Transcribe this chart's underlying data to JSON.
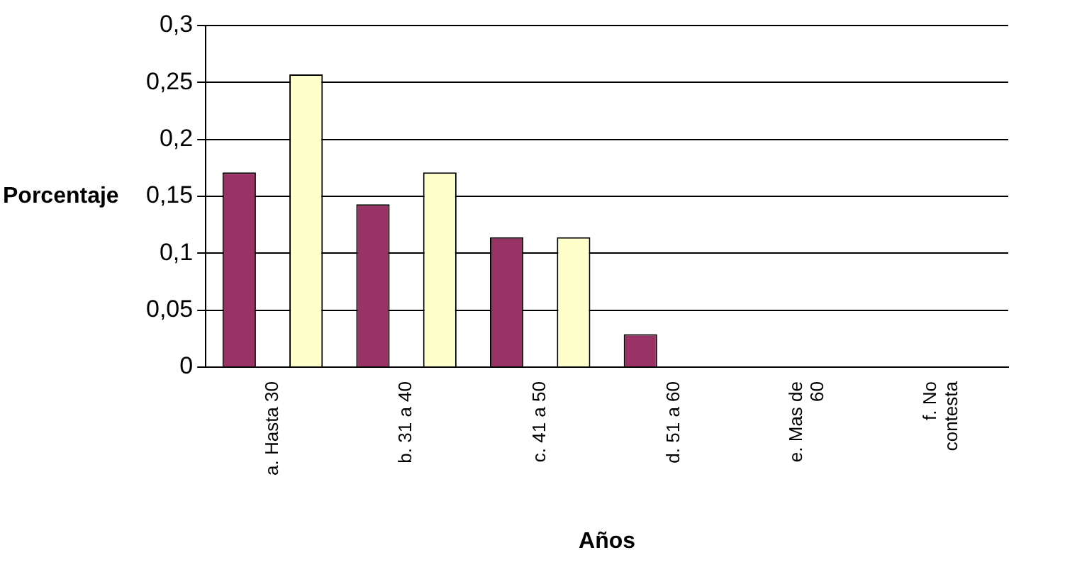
{
  "chart_data": {
    "type": "bar",
    "xlabel": "Años",
    "ylabel": "Porcentaje",
    "categories": [
      "a. Hasta 30",
      "b. 31 a 40",
      "c. 41 a 50",
      "d. 51 a 60",
      "e. Mas de 60",
      "f. No contesta"
    ],
    "series": [
      {
        "color": "#993366",
        "values": [
          0.171,
          0.143,
          0.114,
          0.029,
          0,
          0
        ]
      },
      {
        "color": "#ffffcc",
        "values": [
          0.257,
          0.171,
          0.114,
          0,
          0,
          0
        ]
      }
    ],
    "ylim": [
      0,
      0.3
    ],
    "yticks": [
      {
        "value": 0,
        "label": "0"
      },
      {
        "value": 0.05,
        "label": "0,05"
      },
      {
        "value": 0.1,
        "label": "0,1"
      },
      {
        "value": 0.15,
        "label": "0,15"
      },
      {
        "value": 0.2,
        "label": "0,2"
      },
      {
        "value": 0.25,
        "label": "0,25"
      },
      {
        "value": 0.3,
        "label": "0,3"
      }
    ],
    "grid": "y"
  }
}
